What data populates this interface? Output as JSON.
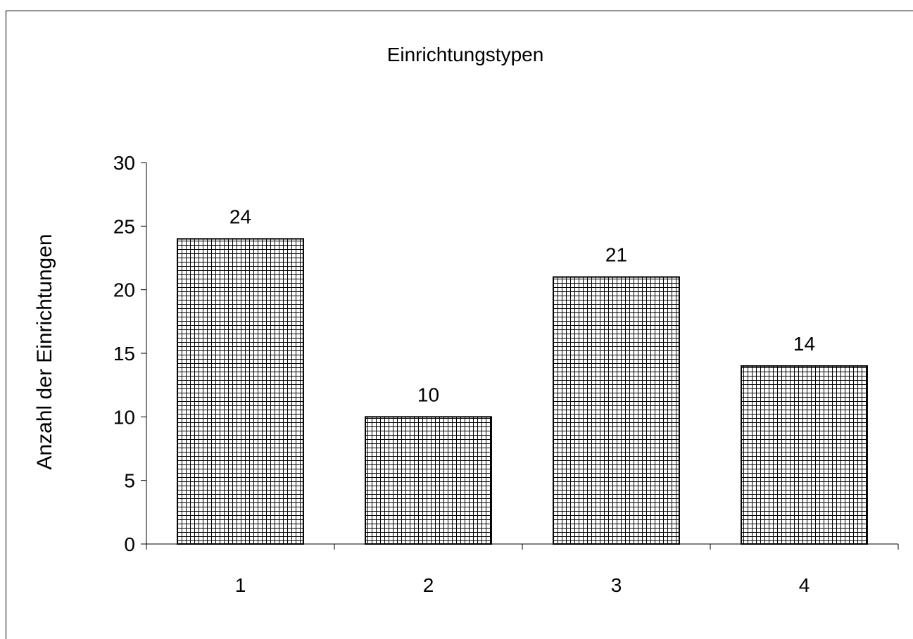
{
  "chart_data": {
    "type": "bar",
    "title": "Einrichtungstypen",
    "xlabel": "",
    "ylabel": "Anzahl der Einrichtungen",
    "categories": [
      "1",
      "2",
      "3",
      "4"
    ],
    "values": [
      24,
      10,
      21,
      14
    ],
    "ylim": [
      0,
      30
    ],
    "yticks": [
      0,
      5,
      10,
      15,
      20,
      25,
      30
    ],
    "ytick_labels": [
      "0",
      "5",
      "10",
      "15",
      "20",
      "25",
      "30"
    ],
    "data_labels": [
      "24",
      "10",
      "21",
      "14"
    ],
    "grid": false,
    "legend": "none",
    "bar_fill": "crosshatch",
    "colors": {
      "bar_line": "#000000",
      "background": "#ffffff"
    }
  }
}
